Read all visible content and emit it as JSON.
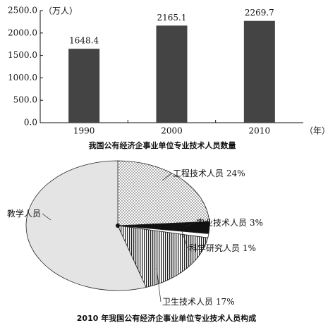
{
  "chart_data": [
    {
      "type": "bar",
      "title": "我国公有经济企事业单位专业技术人员数量",
      "y_unit_label": "（万人）",
      "x_unit_label": "（年）",
      "categories": [
        "1990",
        "2000",
        "2010"
      ],
      "values": [
        1648.4,
        2165.1,
        2269.7
      ],
      "color": "#444444",
      "ylim": [
        0,
        2500
      ],
      "yticks": [
        {
          "value": 0,
          "label": "0.0"
        },
        {
          "value": 500,
          "label": "500.0"
        },
        {
          "value": 1000,
          "label": "1000.0"
        },
        {
          "value": 1500,
          "label": "1500.0"
        },
        {
          "value": 2000,
          "label": "2000.0"
        },
        {
          "value": 2500,
          "label": "2500.0"
        }
      ]
    },
    {
      "type": "pie",
      "title": "2010 年我国公有经济企事业单位专业技术人员构成",
      "categories": [
        "工程技术人员",
        "农业技术人员",
        "科学研究人员",
        "卫生技术人员",
        "教学人员"
      ],
      "values": [
        24,
        3,
        1,
        17,
        55
      ],
      "value_labels": [
        "24%",
        "3%",
        "1%",
        "17%",
        null
      ]
    }
  ]
}
